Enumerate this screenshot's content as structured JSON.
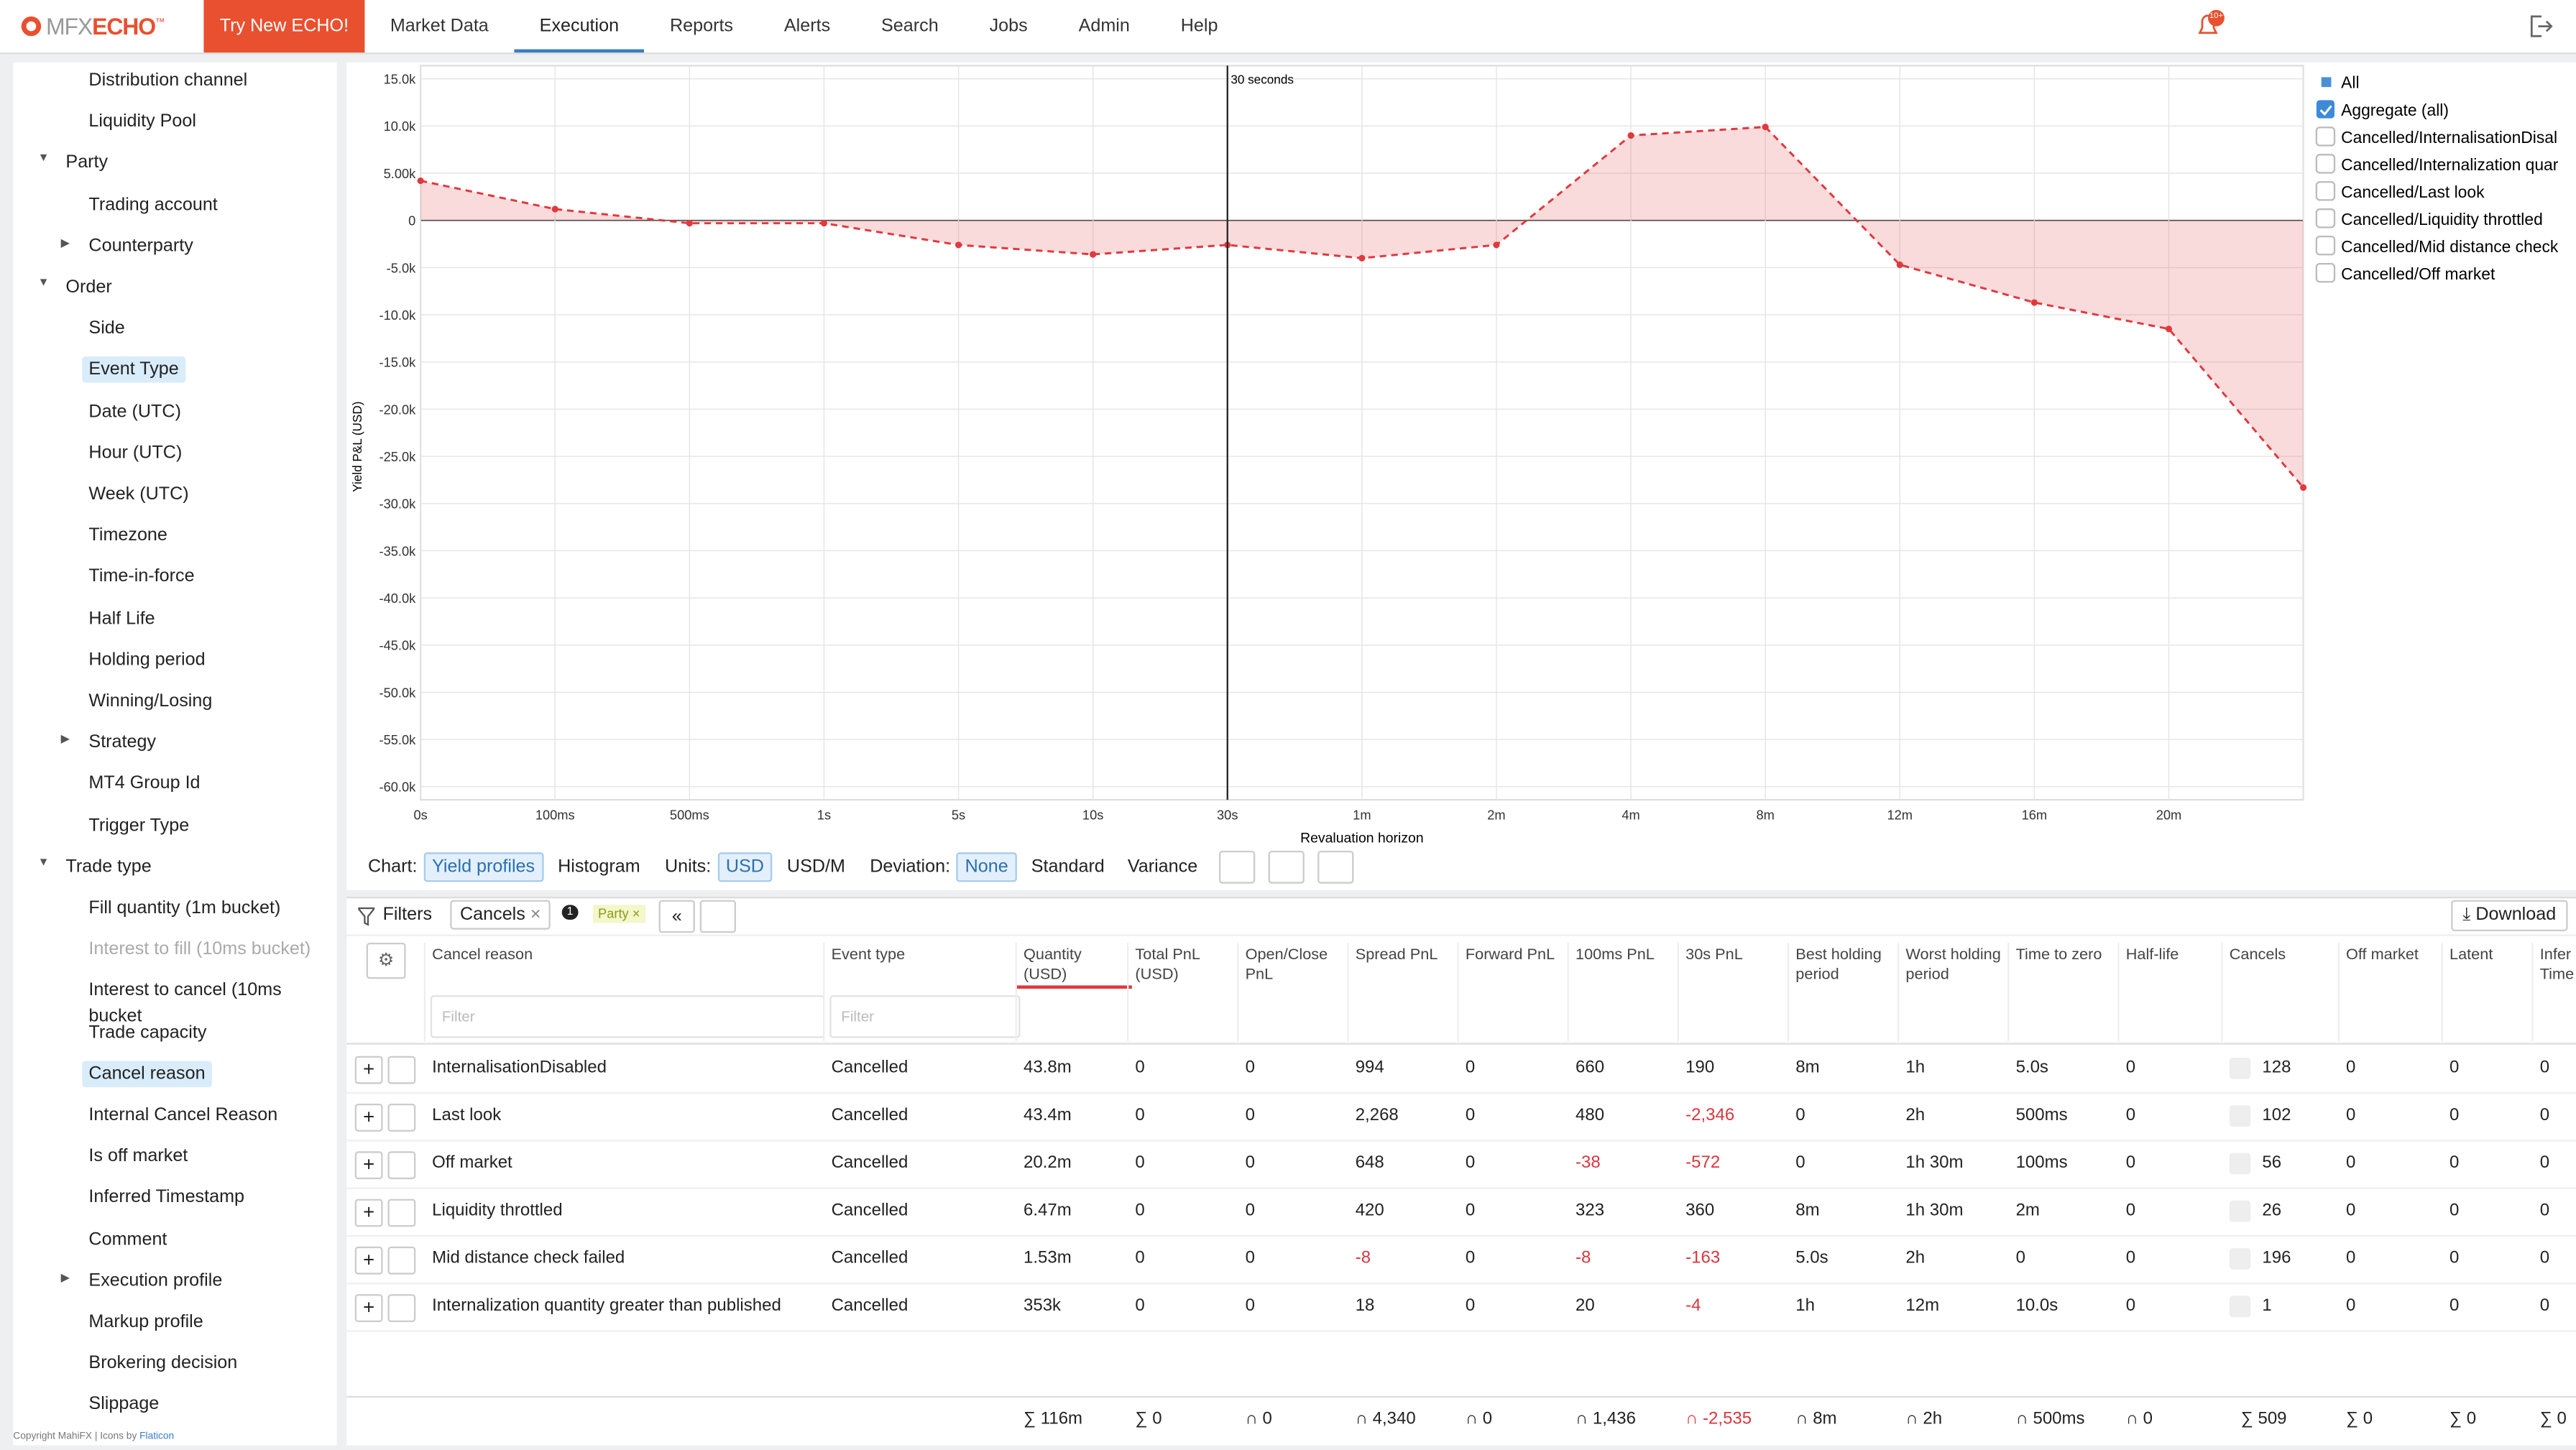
{
  "nav": {
    "logo_prefix": "MFX",
    "logo": "ECHO",
    "logo_mark": "™",
    "try_button": "Try New ECHO!",
    "tabs": [
      "Market Data",
      "Execution",
      "Reports",
      "Alerts",
      "Search",
      "Jobs",
      "Admin",
      "Help"
    ],
    "active_tab": 1,
    "notification_badge": "10+"
  },
  "sidebar": {
    "items": [
      {
        "label": "Distribution channel",
        "kind": "leaf"
      },
      {
        "label": "Liquidity Pool",
        "kind": "leaf"
      },
      {
        "label": "Party",
        "kind": "expanded"
      },
      {
        "label": "Trading account",
        "kind": "leaf"
      },
      {
        "label": "Counterparty",
        "kind": "collapsed"
      },
      {
        "label": "Order",
        "kind": "expanded"
      },
      {
        "label": "Side",
        "kind": "leaf"
      },
      {
        "label": "Event Type",
        "kind": "leaf",
        "selected": true
      },
      {
        "label": "Date (UTC)",
        "kind": "leaf"
      },
      {
        "label": "Hour (UTC)",
        "kind": "leaf"
      },
      {
        "label": "Week (UTC)",
        "kind": "leaf"
      },
      {
        "label": "Timezone",
        "kind": "leaf"
      },
      {
        "label": "Time-in-force",
        "kind": "leaf"
      },
      {
        "label": "Half Life",
        "kind": "leaf"
      },
      {
        "label": "Holding period",
        "kind": "leaf"
      },
      {
        "label": "Winning/Losing",
        "kind": "leaf"
      },
      {
        "label": "Strategy",
        "kind": "collapsed"
      },
      {
        "label": "MT4 Group Id",
        "kind": "leaf"
      },
      {
        "label": "Trigger Type",
        "kind": "leaf"
      },
      {
        "label": "Trade type",
        "kind": "expanded"
      },
      {
        "label": "Fill quantity (1m bucket)",
        "kind": "leaf"
      },
      {
        "label": "Interest to fill (10ms bucket)",
        "kind": "leaf",
        "disabled": true
      },
      {
        "label": "Interest to cancel (10ms bucket",
        "kind": "leaf"
      },
      {
        "label": "Trade capacity",
        "kind": "leaf"
      },
      {
        "label": "Cancel reason",
        "kind": "leaf",
        "selected": true
      },
      {
        "label": "Internal Cancel Reason",
        "kind": "leaf"
      },
      {
        "label": "Is off market",
        "kind": "leaf"
      },
      {
        "label": "Inferred Timestamp",
        "kind": "leaf"
      },
      {
        "label": "Comment",
        "kind": "leaf"
      },
      {
        "label": "Execution profile",
        "kind": "collapsed"
      },
      {
        "label": "Markup profile",
        "kind": "leaf"
      },
      {
        "label": "Brokering decision",
        "kind": "leaf"
      },
      {
        "label": "Slippage",
        "kind": "leaf"
      }
    ],
    "footer": "Copyright MahiFX | Icons by",
    "footer_link": "Flaticon"
  },
  "chart_data": {
    "type": "line",
    "y_label": "Yield P&L (USD)",
    "x_label": "Revaluation horizon",
    "categories": [
      "0s",
      "100ms",
      "500ms",
      "1s",
      "5s",
      "10s",
      "30s",
      "1m",
      "2m",
      "4m",
      "8m",
      "12m",
      "16m",
      "20m",
      null
    ],
    "series": [
      {
        "name": "Aggregate (all)",
        "color": "#e0393e",
        "checked": true,
        "values": [
          4200,
          1200,
          -300,
          -300,
          -2600,
          -3600,
          -2600,
          -4000,
          -2600,
          9000,
          9900,
          -4700,
          -8700,
          -11500,
          -28300
        ]
      }
    ],
    "ylim": [
      -60000,
      15000
    ],
    "yticks": [
      {
        "value": 15000,
        "label": "15.0k"
      },
      {
        "value": 10000,
        "label": "10.0k"
      },
      {
        "value": 5000,
        "label": "5.00k"
      },
      0,
      {
        "value": -5000,
        "label": "-5.0k"
      },
      {
        "value": -10000,
        "label": "-10.0k"
      },
      {
        "value": -15000,
        "label": "-15.0k"
      },
      {
        "value": -20000,
        "label": "-20.0k"
      },
      {
        "value": -25000,
        "label": "-25.0k"
      },
      {
        "value": -30000,
        "label": "-30.0k"
      },
      {
        "value": -35000,
        "label": "-35.0k"
      },
      {
        "value": -40000,
        "label": "-40.0k"
      },
      {
        "value": -45000,
        "label": "-45.0k"
      },
      {
        "value": -50000,
        "label": "-50.0k"
      },
      {
        "value": -55000,
        "label": "-55.0k"
      },
      {
        "value": -60000,
        "label": "-60.0k"
      }
    ],
    "grid": true,
    "fill": true,
    "line_style": "dashed",
    "annotations": [
      {
        "text": "30 seconds",
        "x": "30s"
      }
    ],
    "legend_all": "All",
    "legend_items": [
      "Cancelled/InternalisationDisal",
      "Cancelled/Internalization quar",
      "Cancelled/Last look",
      "Cancelled/Liquidity throttled",
      "Cancelled/Mid distance check",
      "Cancelled/Off market"
    ]
  },
  "chart_toolbar": {
    "groups": [
      {
        "label": "Chart:",
        "options": [
          "Yield profiles",
          "Histogram"
        ],
        "active": 0
      },
      {
        "label": "Units:",
        "options": [
          "USD",
          "USD/M"
        ],
        "active": 0
      },
      {
        "label": "Deviation:",
        "options": [
          "None",
          "Standard",
          "Variance"
        ],
        "active": 0
      }
    ]
  },
  "filters": {
    "label": "Filters",
    "chip": "Cancels",
    "badge": "1",
    "party_chip": "Party",
    "download": "Download"
  },
  "table": {
    "columns": [
      "Cancel reason",
      "Event type",
      "Quantity (USD)",
      "Total PnL (USD)",
      "Open/Close PnL",
      "Spread PnL",
      "Forward PnL",
      "100ms PnL",
      "30s PnL",
      "Best holding period",
      "Worst holding period",
      "Time to zero",
      "Half-life",
      "Cancels",
      "Off market",
      "Latent",
      "Infer Time"
    ],
    "sort_column": 2,
    "filter_placeholder": "Filter",
    "rows": [
      [
        "InternalisationDisabled",
        "Cancelled",
        "43.8m",
        "0",
        "0",
        "994",
        "0",
        "660",
        "190",
        "8m",
        "1h",
        "5.0s",
        "0",
        "128",
        "0",
        "0",
        "0"
      ],
      [
        "Last look",
        "Cancelled",
        "43.4m",
        "0",
        "0",
        "2,268",
        "0",
        "480",
        "-2,346",
        "0",
        "2h",
        "500ms",
        "0",
        "102",
        "0",
        "0",
        "0"
      ],
      [
        "Off market",
        "Cancelled",
        "20.2m",
        "0",
        "0",
        "648",
        "0",
        "-38",
        "-572",
        "0",
        "1h 30m",
        "100ms",
        "0",
        "56",
        "0",
        "0",
        "0"
      ],
      [
        "Liquidity throttled",
        "Cancelled",
        "6.47m",
        "0",
        "0",
        "420",
        "0",
        "323",
        "360",
        "8m",
        "1h 30m",
        "2m",
        "0",
        "26",
        "0",
        "0",
        "0"
      ],
      [
        "Mid distance check failed",
        "Cancelled",
        "1.53m",
        "0",
        "0",
        "-8",
        "0",
        "-8",
        "-163",
        "5.0s",
        "2h",
        "0",
        "0",
        "196",
        "0",
        "0",
        "0"
      ],
      [
        "Internalization quantity greater than published",
        "Cancelled",
        "353k",
        "0",
        "0",
        "18",
        "0",
        "20",
        "-4",
        "1h",
        "12m",
        "10.0s",
        "0",
        "1",
        "0",
        "0",
        "0"
      ]
    ],
    "totals": [
      null,
      null,
      "∑ 116m",
      "∑ 0",
      "∩ 0",
      "∩ 4,340",
      "∩ 0",
      "∩ 1,436",
      "∩ -2,535",
      "∩ 8m",
      "∩ 2h",
      "∩ 500ms",
      "∩ 0",
      "∑ 509",
      "∑ 0",
      "∑ 0",
      "∑ 0"
    ]
  }
}
